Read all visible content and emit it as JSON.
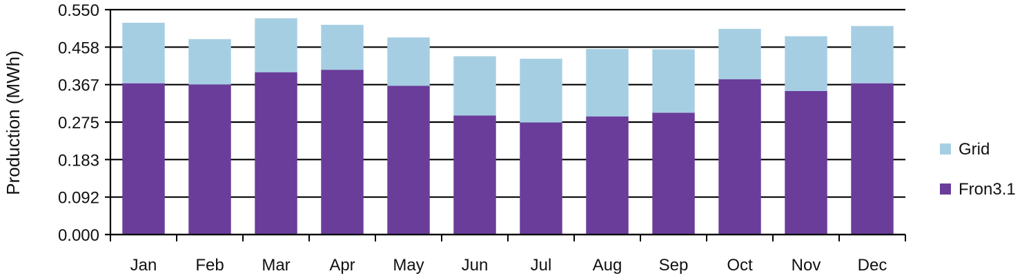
{
  "chart_data": {
    "type": "bar",
    "stacked": true,
    "categories": [
      "Jan",
      "Feb",
      "Mar",
      "Apr",
      "May",
      "Jun",
      "Jul",
      "Aug",
      "Sep",
      "Oct",
      "Nov",
      "Dec"
    ],
    "series": [
      {
        "name": "Fron3.1",
        "color": "#6a3d9a",
        "values": [
          0.37,
          0.367,
          0.397,
          0.403,
          0.364,
          0.291,
          0.274,
          0.289,
          0.298,
          0.38,
          0.351,
          0.37
        ]
      },
      {
        "name": "Grid",
        "color": "#a6cee3",
        "values": [
          0.148,
          0.111,
          0.132,
          0.11,
          0.118,
          0.145,
          0.156,
          0.165,
          0.155,
          0.123,
          0.134,
          0.14
        ]
      }
    ],
    "ylabel": "Production (MWh)",
    "xlabel": "",
    "ylim": [
      0,
      0.55
    ],
    "yticks": [
      "0.000",
      "0.092",
      "0.183",
      "0.275",
      "0.367",
      "0.458",
      "0.550"
    ],
    "grid": true,
    "legend_position": "right"
  }
}
